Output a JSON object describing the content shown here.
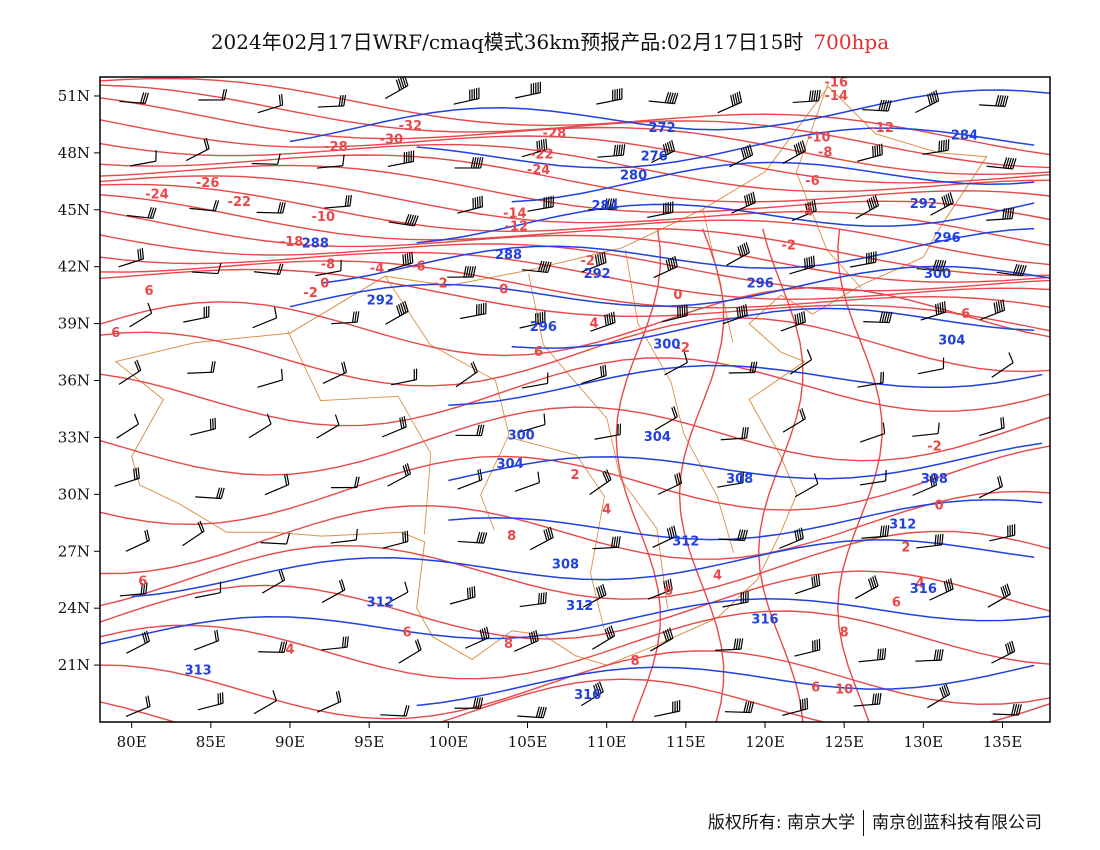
{
  "title": {
    "main": "2024年02月17日WRF/cmaq模式36km预报产品:02月17日15时",
    "level": "700hpa"
  },
  "axes": {
    "lat_labels": [
      "51N",
      "48N",
      "45N",
      "42N",
      "39N",
      "36N",
      "33N",
      "30N",
      "27N",
      "24N",
      "21N"
    ],
    "lat_values": [
      51,
      48,
      45,
      42,
      39,
      36,
      33,
      30,
      27,
      24,
      21
    ],
    "lon_labels": [
      "80E",
      "85E",
      "90E",
      "95E",
      "100E",
      "105E",
      "110E",
      "115E",
      "120E",
      "125E",
      "130E",
      "135E"
    ],
    "lon_values": [
      80,
      85,
      90,
      95,
      100,
      105,
      110,
      115,
      120,
      125,
      130,
      135
    ],
    "lon_range": [
      78,
      138
    ],
    "lat_range": [
      18,
      52
    ]
  },
  "colors": {
    "temperature": "#e8484a",
    "height": "#2040e0",
    "border": "#d9924a",
    "wind": "#000000"
  },
  "contour_labels": {
    "height": [
      {
        "text": "272",
        "lon": 113.5,
        "lat": 49.1
      },
      {
        "text": "276",
        "lon": 113.0,
        "lat": 47.6
      },
      {
        "text": "280",
        "lon": 111.7,
        "lat": 46.6
      },
      {
        "text": "284",
        "lon": 109.9,
        "lat": 45.0
      },
      {
        "text": "284",
        "lon": 132.6,
        "lat": 48.7
      },
      {
        "text": "288",
        "lon": 91.6,
        "lat": 43.0
      },
      {
        "text": "288",
        "lon": 103.8,
        "lat": 42.4
      },
      {
        "text": "292",
        "lon": 95.7,
        "lat": 40.0
      },
      {
        "text": "292",
        "lon": 109.4,
        "lat": 41.4
      },
      {
        "text": "292",
        "lon": 130.0,
        "lat": 45.1
      },
      {
        "text": "296",
        "lon": 106.0,
        "lat": 38.6
      },
      {
        "text": "296",
        "lon": 119.7,
        "lat": 40.9
      },
      {
        "text": "296",
        "lon": 131.5,
        "lat": 43.3
      },
      {
        "text": "300",
        "lon": 113.8,
        "lat": 37.7
      },
      {
        "text": "300",
        "lon": 130.9,
        "lat": 41.4
      },
      {
        "text": "300",
        "lon": 104.6,
        "lat": 32.9
      },
      {
        "text": "304",
        "lon": 103.9,
        "lat": 31.4
      },
      {
        "text": "304",
        "lon": 113.2,
        "lat": 32.8
      },
      {
        "text": "304",
        "lon": 131.8,
        "lat": 37.9
      },
      {
        "text": "308",
        "lon": 107.4,
        "lat": 26.1
      },
      {
        "text": "308",
        "lon": 118.4,
        "lat": 30.6
      },
      {
        "text": "308",
        "lon": 130.7,
        "lat": 30.6
      },
      {
        "text": "312",
        "lon": 115.0,
        "lat": 27.3
      },
      {
        "text": "312",
        "lon": 95.7,
        "lat": 24.1
      },
      {
        "text": "312",
        "lon": 108.3,
        "lat": 23.9
      },
      {
        "text": "312",
        "lon": 128.7,
        "lat": 28.2
      },
      {
        "text": "313",
        "lon": 84.2,
        "lat": 20.5
      },
      {
        "text": "316",
        "lon": 120.0,
        "lat": 23.2
      },
      {
        "text": "316",
        "lon": 108.8,
        "lat": 19.2
      },
      {
        "text": "316",
        "lon": 130.0,
        "lat": 24.8
      }
    ],
    "temperature": [
      {
        "text": "-16",
        "lon": 124.5,
        "lat": 51.5
      },
      {
        "text": "-14",
        "lon": 124.5,
        "lat": 50.8
      },
      {
        "text": "-12",
        "lon": 127.4,
        "lat": 49.1
      },
      {
        "text": "-10",
        "lon": 123.4,
        "lat": 48.6
      },
      {
        "text": "-8",
        "lon": 123.8,
        "lat": 47.8
      },
      {
        "text": "-6",
        "lon": 123.0,
        "lat": 46.3
      },
      {
        "text": "-4",
        "lon": 122.6,
        "lat": 44.7
      },
      {
        "text": "-2",
        "lon": 121.5,
        "lat": 42.9
      },
      {
        "text": "-32",
        "lon": 97.6,
        "lat": 49.2
      },
      {
        "text": "-30",
        "lon": 96.4,
        "lat": 48.5
      },
      {
        "text": "-28",
        "lon": 106.7,
        "lat": 48.8
      },
      {
        "text": "-28",
        "lon": 92.9,
        "lat": 48.1
      },
      {
        "text": "-26",
        "lon": 84.8,
        "lat": 46.2
      },
      {
        "text": "-24",
        "lon": 81.6,
        "lat": 45.6
      },
      {
        "text": "-24",
        "lon": 105.7,
        "lat": 46.9
      },
      {
        "text": "-22",
        "lon": 86.8,
        "lat": 45.2
      },
      {
        "text": "-22",
        "lon": 105.9,
        "lat": 47.7
      },
      {
        "text": "-14",
        "lon": 104.2,
        "lat": 44.6
      },
      {
        "text": "-12",
        "lon": 104.3,
        "lat": 43.9
      },
      {
        "text": "-18",
        "lon": 90.1,
        "lat": 43.1
      },
      {
        "text": "-10",
        "lon": 92.1,
        "lat": 44.4
      },
      {
        "text": "-8",
        "lon": 92.4,
        "lat": 41.9
      },
      {
        "text": "-6",
        "lon": 98.1,
        "lat": 41.8
      },
      {
        "text": "-4",
        "lon": 95.5,
        "lat": 41.7
      },
      {
        "text": "-2",
        "lon": 99.5,
        "lat": 40.9
      },
      {
        "text": "-2",
        "lon": 108.8,
        "lat": 42.1
      },
      {
        "text": "0",
        "lon": 92.2,
        "lat": 40.9
      },
      {
        "text": "0",
        "lon": 103.5,
        "lat": 40.6
      },
      {
        "text": "-2",
        "lon": 91.3,
        "lat": 40.4
      },
      {
        "text": "-2",
        "lon": 114.8,
        "lat": 37.5
      },
      {
        "text": "0",
        "lon": 114.5,
        "lat": 40.3
      },
      {
        "text": "-6",
        "lon": 132.5,
        "lat": 39.3
      },
      {
        "text": "-2",
        "lon": 130.7,
        "lat": 32.3
      },
      {
        "text": "0",
        "lon": 131.0,
        "lat": 29.2
      },
      {
        "text": "2",
        "lon": 128.9,
        "lat": 27.0
      },
      {
        "text": "4",
        "lon": 109.2,
        "lat": 38.8
      },
      {
        "text": "6",
        "lon": 79.0,
        "lat": 38.3
      },
      {
        "text": "6",
        "lon": 81.1,
        "lat": 40.5
      },
      {
        "text": "6",
        "lon": 105.7,
        "lat": 37.3
      },
      {
        "text": "8",
        "lon": 104.0,
        "lat": 27.6
      },
      {
        "text": "4",
        "lon": 110.0,
        "lat": 29.0
      },
      {
        "text": "2",
        "lon": 108.0,
        "lat": 30.8
      },
      {
        "text": "4",
        "lon": 117.0,
        "lat": 25.5
      },
      {
        "text": "4",
        "lon": 129.8,
        "lat": 25.1
      },
      {
        "text": "6",
        "lon": 128.3,
        "lat": 24.1
      },
      {
        "text": "6",
        "lon": 113.9,
        "lat": 24.7
      },
      {
        "text": "6",
        "lon": 97.4,
        "lat": 22.5
      },
      {
        "text": "6",
        "lon": 123.2,
        "lat": 19.6
      },
      {
        "text": "6",
        "lon": 80.7,
        "lat": 25.2
      },
      {
        "text": "4",
        "lon": 90.0,
        "lat": 21.6
      },
      {
        "text": "8",
        "lon": 103.8,
        "lat": 21.9
      },
      {
        "text": "8",
        "lon": 111.8,
        "lat": 21.0
      },
      {
        "text": "8",
        "lon": 125.0,
        "lat": 22.5
      },
      {
        "text": "10",
        "lon": 125.0,
        "lat": 19.5
      }
    ]
  },
  "footer": {
    "copyright": "版权所有: 南京大学",
    "company": "南京创蓝科技有限公司"
  }
}
